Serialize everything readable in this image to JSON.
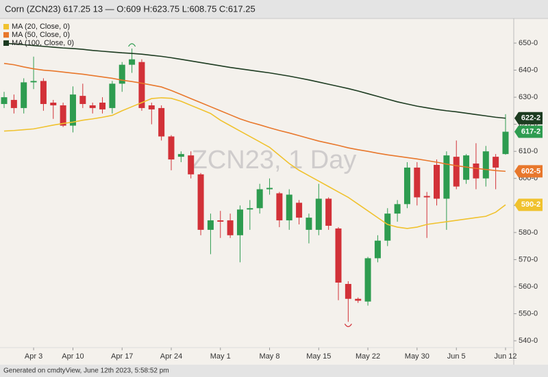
{
  "header": "Corn (ZCN23) 617.25 13 — O:609 H:623.75 L:608.75 C:617.25",
  "footer": "Generated on cmdtyView, June 12th 2023, 5:58:52 pm",
  "chart_data": {
    "type": "candlestick",
    "watermark": "ZCN23, 1 Day",
    "categories": [
      null,
      null,
      null,
      "Apr 3",
      null,
      null,
      null,
      "Apr 10",
      null,
      null,
      null,
      null,
      "Apr 17",
      null,
      null,
      null,
      null,
      "Apr 24",
      null,
      null,
      null,
      null,
      "May 1",
      null,
      null,
      null,
      null,
      "May 8",
      null,
      null,
      null,
      null,
      "May 15",
      null,
      null,
      null,
      null,
      "May 22",
      null,
      null,
      null,
      null,
      "May 30",
      null,
      null,
      null,
      "Jun 5",
      null,
      null,
      null,
      null,
      "Jun 12"
    ],
    "ylim": [
      532,
      659
    ],
    "yticks": [
      {
        "value": 540,
        "label": "540-0"
      },
      {
        "value": 550,
        "label": "550-0"
      },
      {
        "value": 560,
        "label": "560-0"
      },
      {
        "value": 570,
        "label": "570-0"
      },
      {
        "value": 580,
        "label": "580-0"
      },
      {
        "value": 590,
        "label": "590-0"
      },
      {
        "value": 600,
        "label": "600-0"
      },
      {
        "value": 610,
        "label": "610-0"
      },
      {
        "value": 620,
        "label": "620-0"
      },
      {
        "value": 630,
        "label": "630-0"
      },
      {
        "value": 640,
        "label": "640-0"
      },
      {
        "value": 650,
        "label": "650-0"
      }
    ],
    "grid": false,
    "up_color": "#2e9c50",
    "down_color": "#d23138",
    "price": {
      "open": [
        627.5,
        629,
        626,
        635.5,
        636,
        628,
        627,
        619.5,
        630.5,
        627,
        628,
        626,
        635,
        642,
        643,
        627,
        626,
        615.5,
        608,
        608.5,
        601.5,
        581,
        584.5,
        584.5,
        579,
        588.5,
        589,
        596,
        594.5,
        584.5,
        591,
        581,
        581,
        592.5,
        581.5,
        561,
        555.5,
        554.5,
        570.5,
        577,
        587,
        590.5,
        604,
        593.5,
        605,
        592.5,
        608,
        599.5,
        605.5,
        600,
        608,
        609
      ],
      "high": [
        632,
        631,
        637,
        645,
        637,
        629,
        628,
        634,
        635,
        628,
        630,
        636,
        643,
        648,
        644,
        628,
        627,
        616,
        610,
        610,
        602,
        587,
        588,
        587,
        590,
        592,
        598,
        600,
        595,
        596,
        592,
        587,
        598,
        593,
        582,
        562,
        556,
        571,
        579,
        589,
        592,
        606,
        606,
        595,
        607,
        610,
        614,
        609,
        613,
        612,
        609,
        623.75
      ],
      "low": [
        626,
        624,
        624,
        633,
        625,
        622,
        619,
        617,
        626,
        624,
        624,
        624,
        632,
        639,
        625,
        620,
        614,
        603,
        606,
        600,
        579,
        572,
        578,
        578,
        569,
        581,
        587,
        594,
        582,
        581,
        583,
        576,
        579,
        581,
        555,
        547,
        554,
        553,
        569,
        575,
        584,
        589,
        590,
        578,
        590,
        581,
        596,
        598,
        596,
        597,
        596,
        608.75
      ],
      "close": [
        630,
        626,
        635.5,
        636,
        627.5,
        627,
        619.5,
        631,
        627.5,
        626,
        625.5,
        635,
        642,
        644,
        626,
        625.5,
        615.5,
        607,
        609,
        601.5,
        581,
        584.5,
        584,
        579,
        588.5,
        589,
        596,
        596.5,
        584.5,
        594,
        585.5,
        585.5,
        592.5,
        582.5,
        561.5,
        555.5,
        554.8,
        570.5,
        577,
        587,
        590.5,
        604,
        593,
        593,
        592.5,
        608.5,
        597,
        608.5,
        600,
        610,
        604,
        617.25
      ],
      "value_labels": [
        null,
        null,
        null,
        null,
        null,
        null,
        null,
        null,
        null,
        null,
        null,
        null,
        null,
        null,
        null,
        null,
        null,
        null,
        null,
        null,
        null,
        null,
        null,
        null,
        null,
        null,
        null,
        null,
        null,
        null,
        null,
        null,
        null,
        null,
        null,
        null,
        null,
        null,
        null,
        null,
        null,
        null,
        null,
        null,
        null,
        null,
        null,
        null,
        null,
        null,
        null,
        "617-2"
      ]
    },
    "series": [
      {
        "name": "MA (20, Close, 0)",
        "color": "#f0c22e",
        "values": [
          617.5,
          617.7,
          618,
          618.3,
          619,
          619.7,
          620.3,
          620.8,
          621.5,
          622,
          622.6,
          623.3,
          625,
          626.5,
          628,
          629.5,
          629.8,
          629.6,
          628.5,
          627,
          625.5,
          624,
          621.5,
          619.5,
          617.5,
          615.5,
          613.5,
          611.5,
          608.5,
          605.5,
          603,
          601,
          599,
          597,
          595,
          593,
          590.5,
          588,
          585.5,
          583,
          582,
          581.5,
          582,
          583,
          583.5,
          584,
          584.5,
          585,
          585.5,
          586,
          587.5,
          590.25
        ],
        "value_labels": [
          null,
          null,
          null,
          null,
          null,
          null,
          null,
          null,
          null,
          null,
          null,
          null,
          null,
          null,
          null,
          null,
          null,
          null,
          null,
          null,
          null,
          null,
          null,
          null,
          null,
          null,
          null,
          null,
          null,
          null,
          null,
          null,
          null,
          null,
          null,
          null,
          null,
          null,
          null,
          null,
          null,
          null,
          null,
          null,
          null,
          null,
          null,
          null,
          null,
          null,
          null,
          "590-2"
        ]
      },
      {
        "name": "MA (50, Close, 0)",
        "color": "#e8772b",
        "values": [
          642.5,
          642,
          641.2,
          640.5,
          640,
          639.7,
          639.3,
          638.9,
          638.5,
          638,
          637.5,
          637,
          636.3,
          635.8,
          635.2,
          634.5,
          633.8,
          632.5,
          631,
          629.5,
          628,
          626.5,
          625,
          623.5,
          622,
          620.8,
          619.8,
          618.7,
          617.7,
          616.8,
          615.8,
          614.8,
          613.8,
          613,
          612.2,
          611.3,
          610.6,
          610,
          609.3,
          608.7,
          608.2,
          607.7,
          607.2,
          606.6,
          606,
          605.3,
          604.7,
          604.2,
          603.7,
          603.3,
          602.9,
          602.625
        ],
        "value_labels": [
          null,
          null,
          null,
          null,
          null,
          null,
          null,
          null,
          null,
          null,
          null,
          null,
          null,
          null,
          null,
          null,
          null,
          null,
          null,
          null,
          null,
          null,
          null,
          null,
          null,
          null,
          null,
          null,
          null,
          null,
          null,
          null,
          null,
          null,
          null,
          null,
          null,
          null,
          null,
          null,
          null,
          null,
          null,
          null,
          null,
          null,
          null,
          null,
          null,
          null,
          null,
          "602-5"
        ]
      },
      {
        "name": "MA (100, Close, 0)",
        "color": "#1c3b20",
        "values": [
          650,
          649.7,
          649.4,
          649.1,
          648.8,
          648.5,
          648.2,
          648,
          647.7,
          647.3,
          647,
          646.7,
          646.4,
          646.2,
          645.9,
          645.5,
          645.1,
          644.6,
          644,
          643.4,
          642.8,
          642.2,
          641.6,
          641,
          640.5,
          640,
          639.5,
          639,
          638.4,
          637.8,
          637.1,
          636.4,
          635.6,
          634.8,
          634,
          633.2,
          632.3,
          631.3,
          630.3,
          629.3,
          628.3,
          627.5,
          626.7,
          626.1,
          625.5,
          625,
          624.6,
          624.1,
          623.6,
          623.1,
          622.6,
          622.25
        ],
        "value_labels": [
          null,
          null,
          null,
          null,
          null,
          null,
          null,
          null,
          null,
          null,
          null,
          null,
          null,
          null,
          null,
          null,
          null,
          null,
          null,
          null,
          null,
          null,
          null,
          null,
          null,
          null,
          null,
          null,
          null,
          null,
          null,
          null,
          null,
          null,
          null,
          null,
          null,
          null,
          null,
          null,
          null,
          null,
          null,
          null,
          null,
          null,
          null,
          null,
          null,
          null,
          null,
          "622-2"
        ]
      }
    ]
  }
}
